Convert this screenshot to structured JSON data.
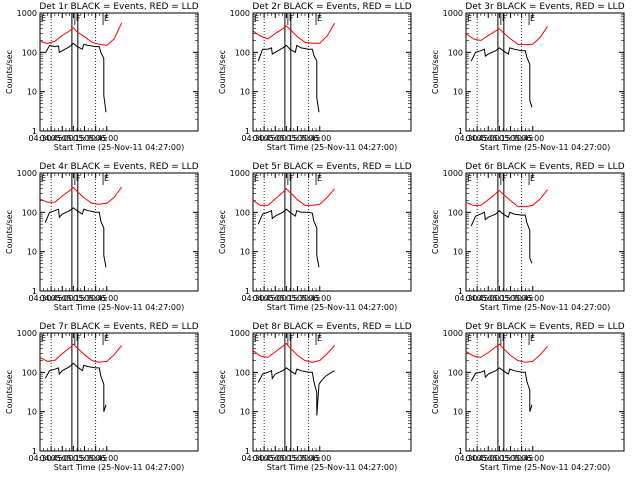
{
  "chart_data": {
    "type": "line",
    "layout": {
      "rows": 3,
      "cols": 3
    },
    "ylabel": "Counts/sec",
    "xlabel": "Start Time (25-Nov-11 04:27:00)",
    "yscale": "log",
    "ylim": [
      1,
      1000
    ],
    "xlim_min": [
      270,
      483
    ],
    "ytick_values": [
      1,
      10,
      100,
      1000
    ],
    "ytick_labels": [
      "1",
      "10",
      "100",
      "1000"
    ],
    "xtick_values_min": [
      270,
      285,
      300,
      315,
      330,
      345,
      360
    ],
    "xtick_labels": [
      "04:30",
      "04:45",
      "05:00",
      "05:15",
      "05:30",
      "05:45",
      "06:00"
    ],
    "dotted_lines_min": [
      285,
      345
    ],
    "flare_window_min": [
      313,
      321
    ],
    "markers": [
      {
        "label": "E",
        "x_min": 270
      },
      {
        "label": "F",
        "x_min": 317
      },
      {
        "label": "E",
        "x_min": 355
      }
    ],
    "series_colors": {
      "black": "#000000",
      "red": "#ff0000"
    },
    "panels": [
      {
        "title": "Det 1r BLACK = Events, RED = LLD",
        "series": [
          {
            "name": "LLD",
            "color": "red",
            "x": [
              270,
              280,
              290,
              300,
              310,
              315,
              320,
              330,
              340,
              350,
              360,
              370,
              380
            ],
            "y": [
              190,
              170,
              190,
              270,
              350,
              420,
              330,
              250,
              180,
              160,
              150,
              220,
              560
            ]
          },
          {
            "name": "Events",
            "color": "black",
            "x": [
              277,
              283,
              290,
              295,
              296,
              300,
              310,
              315,
              320,
              327,
              329,
              335,
              345,
              350,
              352,
              356,
              356,
              359
            ],
            "y": [
              95,
              150,
              140,
              145,
              100,
              110,
              140,
              170,
              140,
              120,
              160,
              150,
              140,
              140,
              100,
              70,
              8,
              3
            ]
          }
        ]
      },
      {
        "title": "Det 2r BLACK = Events, RED = LLD",
        "series": [
          {
            "name": "LLD",
            "color": "red",
            "x": [
              270,
              280,
              290,
              300,
              310,
              315,
              320,
              330,
              340,
              350,
              360,
              370,
              380
            ],
            "y": [
              350,
              260,
              220,
              300,
              400,
              470,
              380,
              250,
              180,
              170,
              170,
              260,
              550
            ]
          },
          {
            "name": "Events",
            "color": "black",
            "x": [
              277,
              283,
              290,
              295,
              296,
              300,
              310,
              315,
              320,
              327,
              329,
              335,
              345,
              350,
              352,
              356,
              356,
              359
            ],
            "y": [
              60,
              120,
              120,
              130,
              90,
              100,
              130,
              150,
              120,
              100,
              150,
              130,
              120,
              120,
              85,
              60,
              7,
              3
            ]
          }
        ]
      },
      {
        "title": "Det 3r BLACK = Events, RED = LLD",
        "series": [
          {
            "name": "LLD",
            "color": "red",
            "x": [
              270,
              280,
              290,
              300,
              310,
              315,
              320,
              330,
              340,
              350,
              360,
              370,
              380
            ],
            "y": [
              300,
              220,
              200,
              270,
              350,
              400,
              320,
              220,
              160,
              155,
              160,
              240,
              460
            ]
          },
          {
            "name": "Events",
            "color": "black",
            "x": [
              277,
              283,
              290,
              295,
              296,
              300,
              310,
              315,
              320,
              327,
              329,
              335,
              345,
              350,
              352,
              356,
              356,
              359
            ],
            "y": [
              60,
              100,
              110,
              120,
              80,
              90,
              110,
              130,
              110,
              90,
              130,
              120,
              110,
              110,
              75,
              50,
              6,
              4
            ]
          }
        ]
      },
      {
        "title": "Det 4r BLACK = Events, RED = LLD",
        "series": [
          {
            "name": "LLD",
            "color": "red",
            "x": [
              270,
              280,
              290,
              300,
              310,
              315,
              320,
              330,
              340,
              350,
              360,
              370,
              380
            ],
            "y": [
              220,
              180,
              180,
              260,
              360,
              430,
              340,
              230,
              170,
              160,
              170,
              240,
              440
            ]
          },
          {
            "name": "Events",
            "color": "black",
            "x": [
              277,
              283,
              290,
              295,
              296,
              300,
              310,
              315,
              320,
              327,
              329,
              335,
              345,
              350,
              352,
              356,
              356,
              359
            ],
            "y": [
              55,
              100,
              110,
              120,
              75,
              90,
              110,
              130,
              110,
              90,
              120,
              110,
              100,
              100,
              60,
              40,
              8,
              4
            ]
          }
        ]
      },
      {
        "title": "Det 5r BLACK = Events, RED = LLD",
        "series": [
          {
            "name": "LLD",
            "color": "red",
            "x": [
              270,
              280,
              290,
              300,
              310,
              315,
              320,
              330,
              340,
              350,
              360,
              370,
              380
            ],
            "y": [
              200,
              150,
              150,
              220,
              320,
              400,
              320,
              210,
              150,
              150,
              160,
              240,
              400
            ]
          },
          {
            "name": "Events",
            "color": "black",
            "x": [
              277,
              283,
              290,
              295,
              296,
              300,
              310,
              315,
              320,
              327,
              329,
              335,
              345,
              350,
              352,
              356,
              356,
              359
            ],
            "y": [
              50,
              90,
              100,
              110,
              70,
              80,
              100,
              120,
              100,
              80,
              110,
              100,
              100,
              95,
              60,
              40,
              8,
              4
            ]
          }
        ]
      },
      {
        "title": "Det 6r BLACK = Events, RED = LLD",
        "series": [
          {
            "name": "LLD",
            "color": "red",
            "x": [
              270,
              280,
              290,
              300,
              310,
              315,
              320,
              330,
              340,
              350,
              360,
              370,
              380
            ],
            "y": [
              180,
              150,
              150,
              210,
              300,
              360,
              290,
              200,
              140,
              140,
              150,
              220,
              380
            ]
          },
          {
            "name": "Events",
            "color": "black",
            "x": [
              277,
              283,
              290,
              295,
              296,
              300,
              310,
              315,
              320,
              327,
              329,
              335,
              345,
              350,
              352,
              356,
              356,
              359
            ],
            "y": [
              45,
              80,
              90,
              100,
              65,
              75,
              90,
              110,
              90,
              75,
              100,
              90,
              85,
              85,
              55,
              35,
              7,
              5
            ]
          }
        ]
      },
      {
        "title": "Det 7r BLACK = Events, RED = LLD",
        "series": [
          {
            "name": "LLD",
            "color": "red",
            "x": [
              270,
              280,
              290,
              300,
              310,
              315,
              320,
              330,
              340,
              350,
              360,
              370,
              380
            ],
            "y": [
              240,
              190,
              200,
              300,
              420,
              520,
              420,
              280,
              200,
              180,
              190,
              280,
              480
            ]
          },
          {
            "name": "Events",
            "color": "black",
            "x": [
              277,
              283,
              290,
              295,
              296,
              300,
              310,
              315,
              320,
              327,
              329,
              335,
              345,
              350,
              352,
              356,
              356,
              359
            ],
            "y": [
              70,
              110,
              120,
              130,
              90,
              110,
              140,
              170,
              140,
              110,
              150,
              140,
              130,
              130,
              80,
              50,
              10,
              15
            ]
          }
        ]
      },
      {
        "title": "Det 8r BLACK = Events, RED = LLD",
        "series": [
          {
            "name": "LLD",
            "color": "red",
            "x": [
              270,
              280,
              290,
              300,
              310,
              315,
              320,
              330,
              340,
              350,
              360,
              370,
              380
            ],
            "y": [
              360,
              260,
              240,
              330,
              460,
              540,
              420,
              270,
              200,
              180,
              200,
              300,
              480
            ]
          },
          {
            "name": "Events",
            "color": "black",
            "x": [
              277,
              283,
              290,
              295,
              296,
              300,
              310,
              315,
              320,
              327,
              329,
              335,
              345,
              350,
              352,
              356,
              356,
              359,
              362,
              368,
              376,
              380
            ],
            "y": [
              55,
              90,
              100,
              110,
              70,
              90,
              110,
              130,
              110,
              90,
              120,
              110,
              100,
              100,
              60,
              30,
              8,
              50,
              60,
              80,
              100,
              110
            ]
          }
        ]
      },
      {
        "title": "Det 9r BLACK = Events, RED = LLD",
        "series": [
          {
            "name": "LLD",
            "color": "red",
            "x": [
              270,
              280,
              290,
              300,
              310,
              315,
              320,
              330,
              340,
              350,
              360,
              370,
              380
            ],
            "y": [
              340,
              260,
              240,
              320,
              440,
              520,
              410,
              270,
              200,
              180,
              190,
              280,
              460
            ]
          },
          {
            "name": "Events",
            "color": "black",
            "x": [
              277,
              283,
              290,
              295,
              296,
              300,
              310,
              315,
              320,
              327,
              329,
              335,
              345,
              350,
              352,
              356,
              356,
              359
            ],
            "y": [
              60,
              95,
              100,
              110,
              75,
              90,
              110,
              130,
              110,
              90,
              120,
              110,
              100,
              100,
              60,
              35,
              10,
              15
            ]
          }
        ]
      }
    ]
  }
}
